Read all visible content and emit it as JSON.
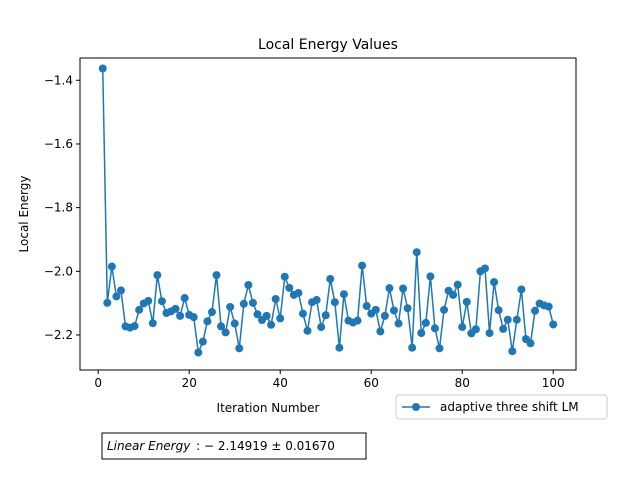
{
  "chart_data": {
    "type": "line",
    "title": "Local Energy Values",
    "xlabel": "Iteration Number",
    "ylabel": "Local Energy",
    "xlim": [
      -4,
      105
    ],
    "ylim": [
      -2.31,
      -1.33
    ],
    "xticks": [
      0,
      20,
      40,
      60,
      80,
      100
    ],
    "yticks": [
      -1.4,
      -1.6,
      -1.8,
      -2.0,
      -2.2
    ],
    "xtick_labels": [
      "0",
      "20",
      "40",
      "60",
      "80",
      "100"
    ],
    "ytick_labels": [
      "−1.4",
      "−1.6",
      "−1.8",
      "−2.0",
      "−2.2"
    ],
    "grid": false,
    "legend_position": "lower-right, outside plot",
    "series": [
      {
        "name": "adaptive three shift LM",
        "color": "#1f77b4",
        "marker": "circle",
        "x": [
          1,
          2,
          3,
          4,
          5,
          6,
          7,
          8,
          9,
          10,
          11,
          12,
          13,
          14,
          15,
          16,
          17,
          18,
          19,
          20,
          21,
          22,
          23,
          24,
          25,
          26,
          27,
          28,
          29,
          30,
          31,
          32,
          33,
          34,
          35,
          36,
          37,
          38,
          39,
          40,
          41,
          42,
          43,
          44,
          45,
          46,
          47,
          48,
          49,
          50,
          51,
          52,
          53,
          54,
          55,
          56,
          57,
          58,
          59,
          60,
          61,
          62,
          63,
          64,
          65,
          66,
          67,
          68,
          69,
          70,
          71,
          72,
          73,
          74,
          75,
          76,
          77,
          78,
          79,
          80,
          81,
          82,
          83,
          84,
          85,
          86,
          87,
          88,
          89,
          90,
          91,
          92,
          93,
          94,
          95,
          96,
          97,
          98,
          99,
          100
        ],
        "y": [
          -1.363,
          -2.099,
          -1.985,
          -2.079,
          -2.06,
          -2.173,
          -2.177,
          -2.172,
          -2.121,
          -2.101,
          -2.093,
          -2.163,
          -2.012,
          -2.094,
          -2.131,
          -2.126,
          -2.118,
          -2.14,
          -2.084,
          -2.137,
          -2.144,
          -2.255,
          -2.221,
          -2.157,
          -2.128,
          -2.012,
          -2.173,
          -2.192,
          -2.112,
          -2.164,
          -2.242,
          -2.102,
          -2.043,
          -2.099,
          -2.135,
          -2.153,
          -2.14,
          -2.168,
          -2.087,
          -2.148,
          -2.017,
          -2.052,
          -2.074,
          -2.068,
          -2.133,
          -2.187,
          -2.097,
          -2.09,
          -2.175,
          -2.138,
          -2.024,
          -2.097,
          -2.24,
          -2.072,
          -2.155,
          -2.161,
          -2.155,
          -1.982,
          -2.109,
          -2.133,
          -2.121,
          -2.189,
          -2.14,
          -2.053,
          -2.123,
          -2.164,
          -2.054,
          -2.116,
          -2.24,
          -1.94,
          -2.194,
          -2.162,
          -2.016,
          -2.179,
          -2.242,
          -2.121,
          -2.061,
          -2.074,
          -2.042,
          -2.175,
          -2.096,
          -2.195,
          -2.182,
          -2.0,
          -1.991,
          -2.194,
          -2.034,
          -2.122,
          -2.181,
          -2.152,
          -2.251,
          -2.152,
          -2.057,
          -2.213,
          -2.226,
          -2.124,
          -2.101,
          -2.107,
          -2.111,
          -2.167
        ]
      }
    ],
    "annotation": "Linear Energy : − 2.14919 ± 0.01670"
  },
  "legend": {
    "label": "adaptive three shift LM"
  },
  "annotation_box": {
    "label_italic": "Linear Energy",
    "value_text": ": − 2.14919 ± 0.01670"
  }
}
